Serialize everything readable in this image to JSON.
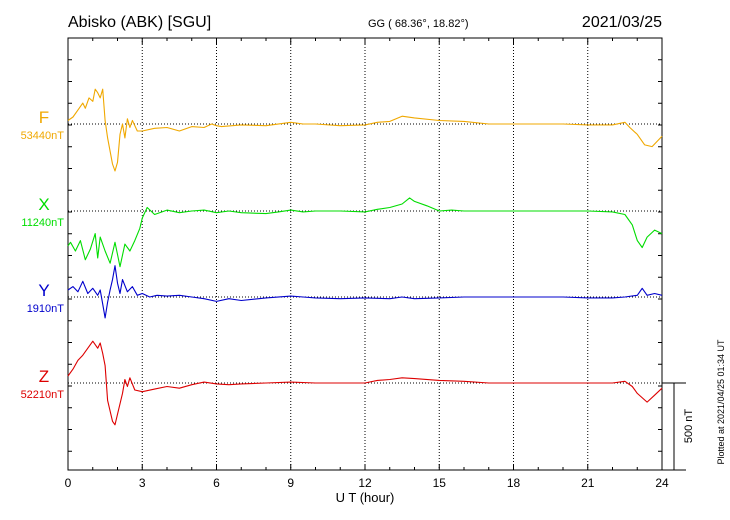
{
  "header": {
    "station": "Abisko (ABK)  [SGU]",
    "coords": "GG ( 68.36°,  18.82°)",
    "date": "2021/03/25"
  },
  "side_note": "Plotted at 2021/04/25 01:34 UT",
  "scale_label": "500 nT",
  "chart_data": {
    "type": "line",
    "xlabel": "U T (hour)",
    "xlim": [
      0,
      24
    ],
    "xticks": [
      "0",
      "3",
      "6",
      "9",
      "12",
      "15",
      "18",
      "21",
      "24"
    ],
    "scale_bar_nT": 500,
    "grid": true,
    "series": [
      {
        "name": "F",
        "baseline_label": "53440nT",
        "color": "#f0a800",
        "points": [
          [
            0,
            20
          ],
          [
            0.2,
            40
          ],
          [
            0.4,
            80
          ],
          [
            0.6,
            120
          ],
          [
            0.7,
            90
          ],
          [
            0.85,
            150
          ],
          [
            1,
            130
          ],
          [
            1.1,
            200
          ],
          [
            1.2,
            180
          ],
          [
            1.3,
            150
          ],
          [
            1.4,
            200
          ],
          [
            1.5,
            20
          ],
          [
            1.6,
            -80
          ],
          [
            1.8,
            -230
          ],
          [
            1.9,
            -270
          ],
          [
            2,
            -220
          ],
          [
            2.1,
            -60
          ],
          [
            2.2,
            0
          ],
          [
            2.3,
            -80
          ],
          [
            2.4,
            30
          ],
          [
            2.5,
            -20
          ],
          [
            2.6,
            20
          ],
          [
            2.8,
            -40
          ],
          [
            3,
            -40
          ],
          [
            3.5,
            -25
          ],
          [
            4,
            -20
          ],
          [
            4.5,
            -40
          ],
          [
            5,
            -15
          ],
          [
            5.5,
            -20
          ],
          [
            5.8,
            0
          ],
          [
            6,
            -10
          ],
          [
            6.2,
            -15
          ],
          [
            7,
            -5
          ],
          [
            8,
            -10
          ],
          [
            9,
            10
          ],
          [
            9.5,
            0
          ],
          [
            10,
            0
          ],
          [
            11,
            -10
          ],
          [
            12,
            -5
          ],
          [
            12.5,
            10
          ],
          [
            13,
            15
          ],
          [
            13.5,
            45
          ],
          [
            14,
            35
          ],
          [
            15,
            20
          ],
          [
            16,
            15
          ],
          [
            17,
            0
          ],
          [
            18,
            0
          ],
          [
            19,
            0
          ],
          [
            20,
            0
          ],
          [
            21,
            -5
          ],
          [
            22,
            -5
          ],
          [
            22.5,
            10
          ],
          [
            22.7,
            -20
          ],
          [
            23,
            -60
          ],
          [
            23.3,
            -120
          ],
          [
            23.6,
            -130
          ],
          [
            23.8,
            -100
          ],
          [
            24,
            -70
          ]
        ]
      },
      {
        "name": "X",
        "baseline_label": "11240nT",
        "color": "#00dd00",
        "points": [
          [
            0,
            -200
          ],
          [
            0.1,
            -180
          ],
          [
            0.3,
            -230
          ],
          [
            0.5,
            -170
          ],
          [
            0.7,
            -280
          ],
          [
            0.9,
            -220
          ],
          [
            1.1,
            -130
          ],
          [
            1.2,
            -270
          ],
          [
            1.3,
            -150
          ],
          [
            1.5,
            -230
          ],
          [
            1.7,
            -300
          ],
          [
            1.9,
            -180
          ],
          [
            2.1,
            -320
          ],
          [
            2.3,
            -190
          ],
          [
            2.5,
            -230
          ],
          [
            2.7,
            -170
          ],
          [
            2.9,
            -100
          ],
          [
            3,
            -40
          ],
          [
            3.2,
            20
          ],
          [
            3.5,
            -20
          ],
          [
            4,
            5
          ],
          [
            4.5,
            -10
          ],
          [
            5,
            0
          ],
          [
            5.5,
            5
          ],
          [
            6,
            -10
          ],
          [
            6.5,
            0
          ],
          [
            7,
            -10
          ],
          [
            8,
            -15
          ],
          [
            8.5,
            -5
          ],
          [
            9,
            5
          ],
          [
            9.5,
            -5
          ],
          [
            10,
            0
          ],
          [
            11,
            0
          ],
          [
            12,
            -5
          ],
          [
            12.5,
            10
          ],
          [
            13,
            20
          ],
          [
            13.5,
            40
          ],
          [
            13.8,
            75
          ],
          [
            14,
            55
          ],
          [
            14.5,
            30
          ],
          [
            15,
            0
          ],
          [
            15.5,
            5
          ],
          [
            16,
            0
          ],
          [
            17,
            0
          ],
          [
            18,
            0
          ],
          [
            19,
            0
          ],
          [
            20,
            0
          ],
          [
            21,
            0
          ],
          [
            22,
            -5
          ],
          [
            22.5,
            -20
          ],
          [
            22.8,
            -80
          ],
          [
            23,
            -170
          ],
          [
            23.2,
            -210
          ],
          [
            23.4,
            -150
          ],
          [
            23.7,
            -110
          ],
          [
            24,
            -130
          ]
        ]
      },
      {
        "name": "Y",
        "baseline_label": "1910nT",
        "color": "#0000cc",
        "points": [
          [
            0,
            40
          ],
          [
            0.2,
            60
          ],
          [
            0.4,
            30
          ],
          [
            0.6,
            90
          ],
          [
            0.8,
            20
          ],
          [
            1,
            50
          ],
          [
            1.2,
            10
          ],
          [
            1.3,
            40
          ],
          [
            1.4,
            -40
          ],
          [
            1.5,
            -120
          ],
          [
            1.6,
            -30
          ],
          [
            1.7,
            40
          ],
          [
            1.8,
            100
          ],
          [
            1.9,
            180
          ],
          [
            2,
            80
          ],
          [
            2.1,
            20
          ],
          [
            2.2,
            100
          ],
          [
            2.4,
            30
          ],
          [
            2.6,
            60
          ],
          [
            2.8,
            10
          ],
          [
            3,
            20
          ],
          [
            3.3,
            0
          ],
          [
            3.6,
            10
          ],
          [
            4,
            5
          ],
          [
            4.5,
            10
          ],
          [
            5,
            0
          ],
          [
            5.5,
            -10
          ],
          [
            6,
            -25
          ],
          [
            6.5,
            -10
          ],
          [
            7,
            -20
          ],
          [
            8,
            -5
          ],
          [
            9,
            5
          ],
          [
            9.5,
            0
          ],
          [
            10,
            -5
          ],
          [
            11,
            -10
          ],
          [
            12,
            -5
          ],
          [
            13,
            -10
          ],
          [
            13.5,
            0
          ],
          [
            14,
            -10
          ],
          [
            15,
            -5
          ],
          [
            16,
            0
          ],
          [
            17,
            0
          ],
          [
            18,
            0
          ],
          [
            19,
            0
          ],
          [
            20,
            0
          ],
          [
            21,
            -5
          ],
          [
            22,
            -5
          ],
          [
            22.5,
            0
          ],
          [
            23,
            10
          ],
          [
            23.2,
            50
          ],
          [
            23.4,
            10
          ],
          [
            23.7,
            20
          ],
          [
            24,
            10
          ]
        ]
      },
      {
        "name": "Z",
        "baseline_label": "52210nT",
        "color": "#dd0000",
        "points": [
          [
            0,
            40
          ],
          [
            0.2,
            80
          ],
          [
            0.4,
            130
          ],
          [
            0.6,
            160
          ],
          [
            0.8,
            200
          ],
          [
            1,
            240
          ],
          [
            1.2,
            200
          ],
          [
            1.3,
            230
          ],
          [
            1.4,
            170
          ],
          [
            1.5,
            100
          ],
          [
            1.6,
            -100
          ],
          [
            1.8,
            -220
          ],
          [
            1.9,
            -240
          ],
          [
            2,
            -180
          ],
          [
            2.2,
            -60
          ],
          [
            2.3,
            20
          ],
          [
            2.4,
            -20
          ],
          [
            2.5,
            30
          ],
          [
            2.7,
            -40
          ],
          [
            3,
            -50
          ],
          [
            3.5,
            -35
          ],
          [
            4,
            -20
          ],
          [
            4.5,
            -30
          ],
          [
            5,
            -10
          ],
          [
            5.5,
            5
          ],
          [
            6,
            -5
          ],
          [
            6.5,
            -10
          ],
          [
            7,
            -5
          ],
          [
            8,
            0
          ],
          [
            9,
            5
          ],
          [
            10,
            0
          ],
          [
            11,
            0
          ],
          [
            12,
            0
          ],
          [
            12.5,
            15
          ],
          [
            13,
            20
          ],
          [
            13.5,
            30
          ],
          [
            14,
            25
          ],
          [
            15,
            15
          ],
          [
            16,
            10
          ],
          [
            17,
            0
          ],
          [
            18,
            0
          ],
          [
            19,
            0
          ],
          [
            20,
            0
          ],
          [
            21,
            0
          ],
          [
            22,
            0
          ],
          [
            22.5,
            10
          ],
          [
            22.8,
            -20
          ],
          [
            23,
            -60
          ],
          [
            23.4,
            -110
          ],
          [
            23.7,
            -70
          ],
          [
            24,
            -30
          ]
        ]
      }
    ]
  }
}
